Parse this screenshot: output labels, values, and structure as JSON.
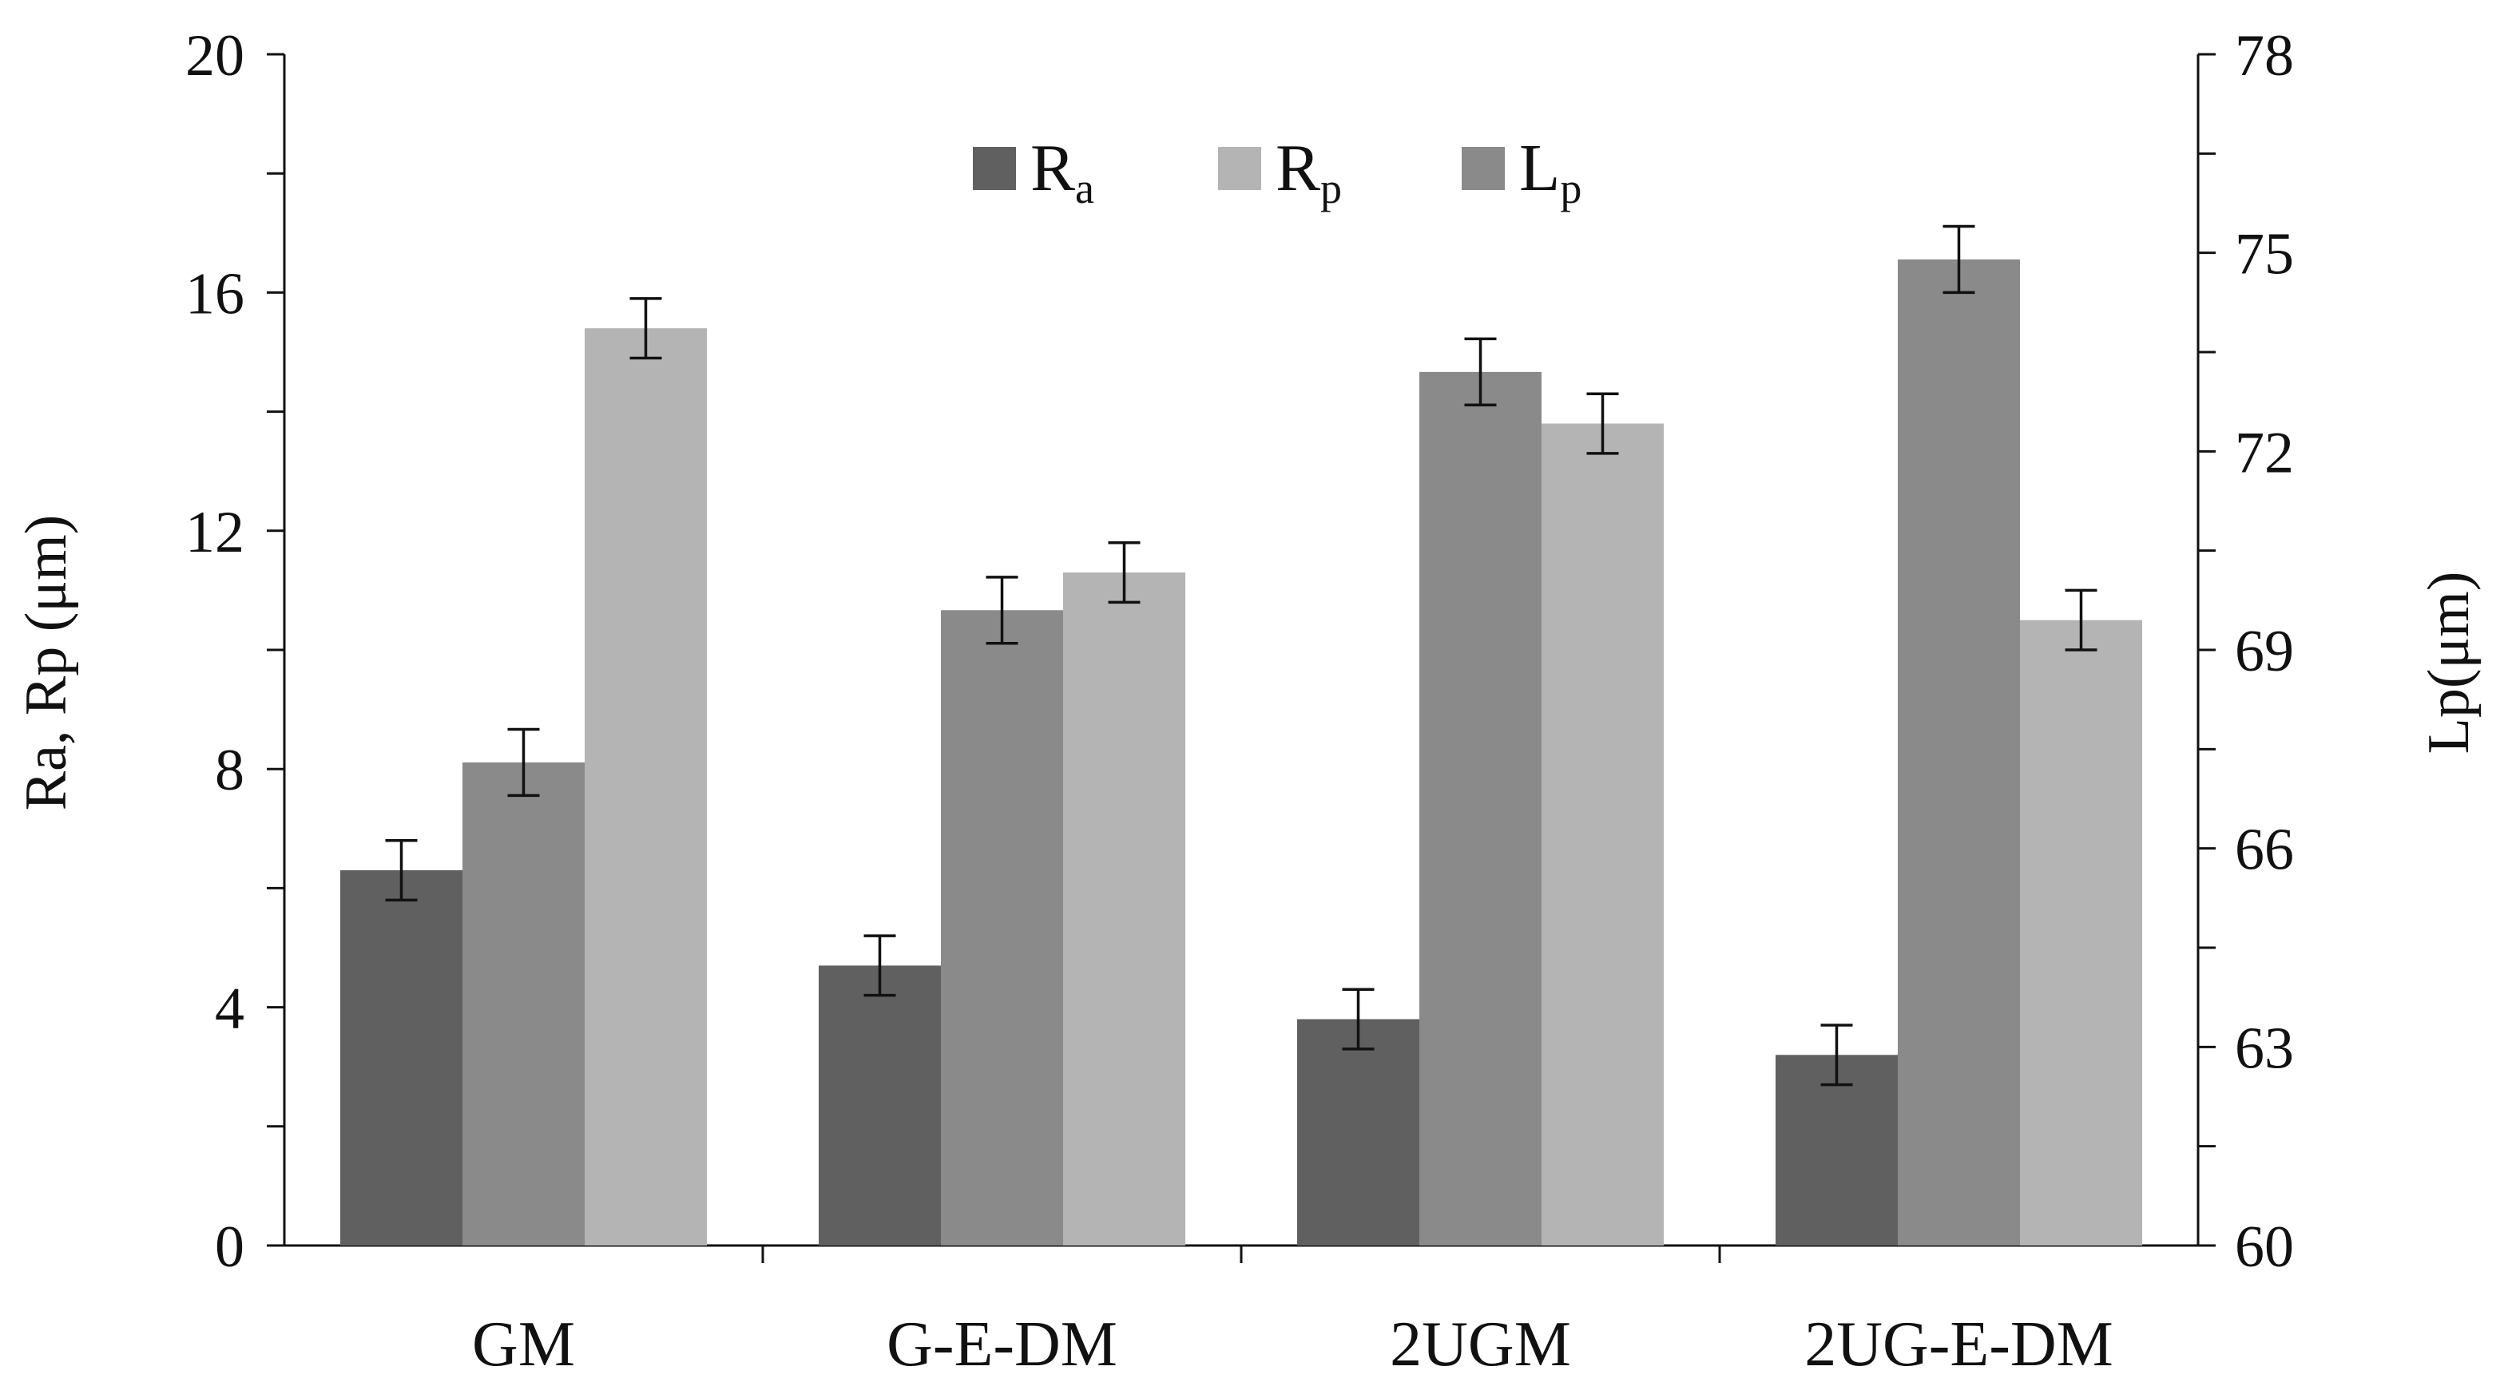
{
  "chart_data": {
    "type": "bar",
    "categories": [
      "GM",
      "G-E-DM",
      "2UGM",
      "2UG-E-DM"
    ],
    "y_left": {
      "label": "Ra, Rp (μm)",
      "range": [
        0,
        20
      ],
      "ticks": [
        0,
        4,
        8,
        12,
        16,
        20
      ]
    },
    "y_right": {
      "label": "Lp(μm)",
      "range": [
        60,
        78
      ],
      "ticks": [
        60,
        63,
        66,
        69,
        72,
        75,
        78
      ]
    },
    "series": [
      {
        "name": "Ra",
        "legend_main": "R",
        "legend_sub": "a",
        "axis": "left",
        "color": "#606060",
        "values": [
          6.3,
          4.7,
          3.8,
          3.2
        ],
        "errors": [
          0.5,
          0.5,
          0.5,
          0.5
        ]
      },
      {
        "name": "Lp",
        "legend_main": "L",
        "legend_sub": "p",
        "axis": "right",
        "color": "#8a8a8a",
        "values": [
          67.3,
          69.6,
          73.2,
          74.9
        ],
        "errors": [
          0.5,
          0.5,
          0.5,
          0.5
        ]
      },
      {
        "name": "Rp",
        "legend_main": "R",
        "legend_sub": "p",
        "axis": "left",
        "color": "#b4b4b4",
        "values": [
          15.4,
          11.3,
          13.8,
          10.5
        ],
        "errors": [
          0.5,
          0.5,
          0.5,
          0.5
        ]
      }
    ],
    "legend_order": [
      "Ra",
      "Rp",
      "Lp"
    ],
    "legend_position": "top-center",
    "grid": false
  }
}
